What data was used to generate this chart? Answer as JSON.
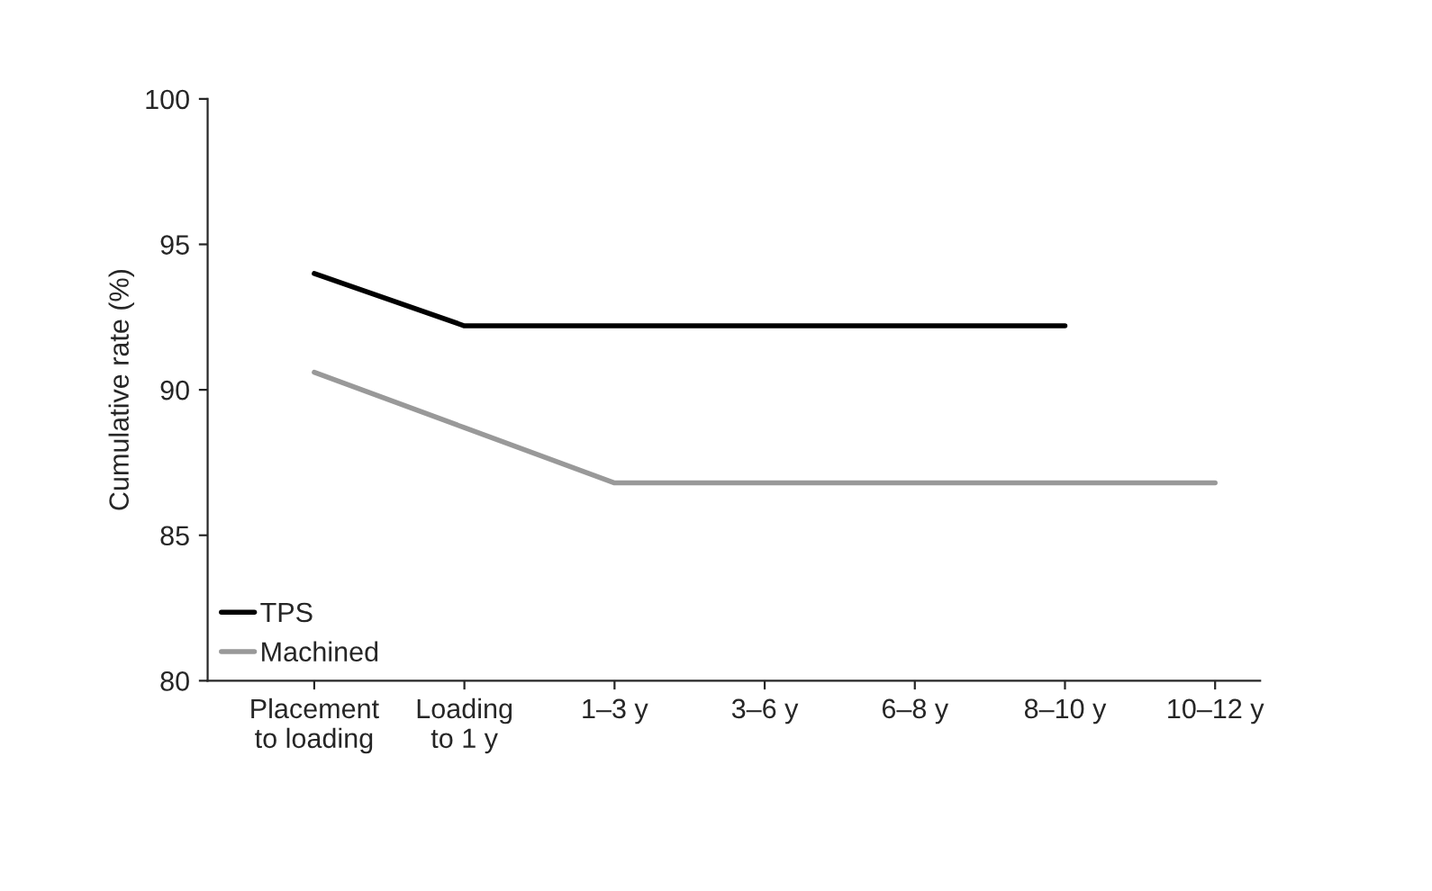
{
  "chart_data": {
    "type": "line",
    "ylabel": "Cumulative rate (%)",
    "categories": [
      "Placement\nto loading",
      "Loading\nto 1 y",
      "1–3 y",
      "3–6 y",
      "6–8 y",
      "8–10 y",
      "10–12 y"
    ],
    "series": [
      {
        "name": "TPS",
        "color": "#000000",
        "values": [
          94.0,
          92.2,
          92.2,
          92.2,
          92.2,
          92.2,
          null
        ]
      },
      {
        "name": "Machined",
        "color": "#999999",
        "values": [
          90.6,
          88.7,
          86.8,
          86.8,
          86.8,
          86.8,
          86.8
        ]
      }
    ],
    "ylim": [
      80,
      100
    ],
    "yticks": [
      80,
      85,
      90,
      95,
      100
    ],
    "grid": false,
    "legend": "bottom left",
    "marker": "none",
    "line_style": "solid"
  }
}
